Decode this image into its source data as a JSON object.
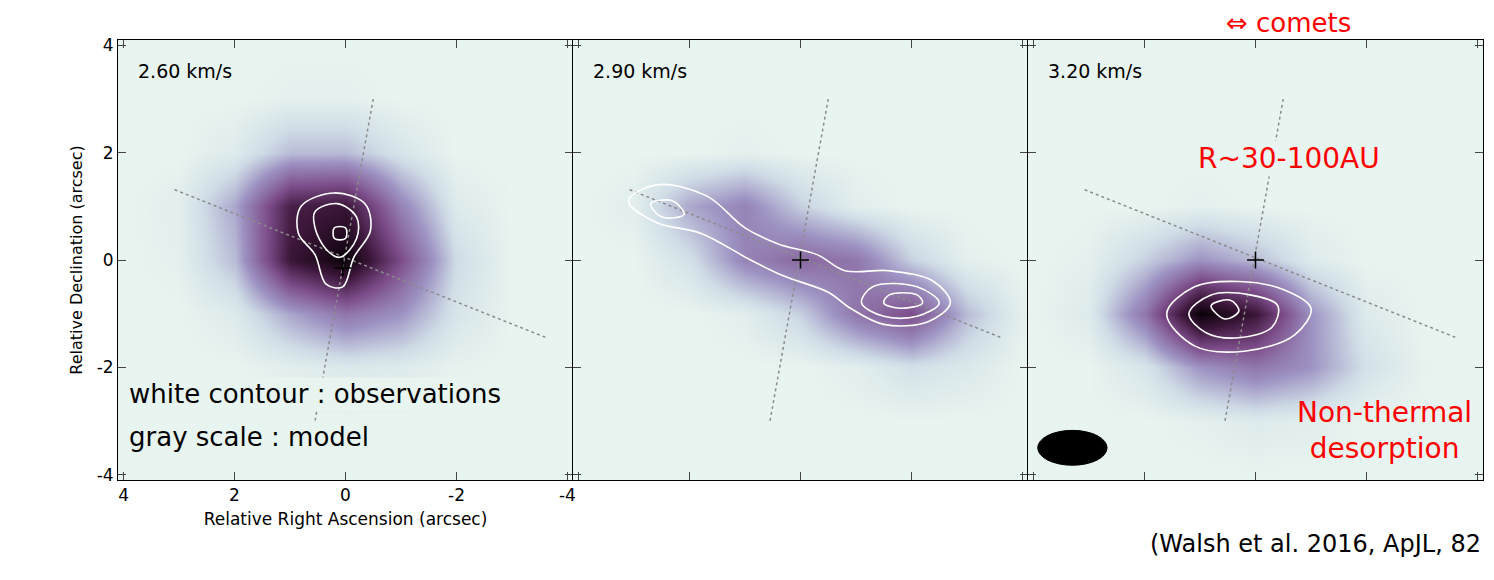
{
  "chart_data": [
    {
      "type": "heatmap",
      "title": "2.60 km/s",
      "xlabel": "Relative Right Ascension (arcsec)",
      "ylabel": "Relative Declination (arcsec)",
      "xlim": [
        4.1,
        -4.1
      ],
      "ylim": [
        -4.1,
        4.1
      ],
      "xticks": [
        4,
        2,
        0,
        -2,
        -4
      ],
      "yticks": [
        -4,
        -2,
        0,
        2,
        4
      ],
      "x": [
        4,
        3,
        2,
        1,
        0,
        -1,
        -2,
        -3,
        -4
      ],
      "y": [
        -4,
        -3,
        -2,
        -1,
        0,
        1,
        2,
        3,
        4
      ],
      "z": [
        [
          0,
          0,
          0,
          0,
          0,
          0,
          0,
          0,
          0
        ],
        [
          0,
          0,
          0,
          0,
          0,
          0,
          0,
          0,
          0
        ],
        [
          0,
          0,
          0,
          0.03,
          0.06,
          0.05,
          0.01,
          0,
          0
        ],
        [
          0,
          0,
          0.05,
          0.25,
          0.4,
          0.3,
          0.08,
          0,
          0
        ],
        [
          0,
          0.02,
          0.2,
          0.8,
          1.0,
          0.55,
          0.12,
          0,
          0
        ],
        [
          0,
          0.03,
          0.25,
          0.75,
          0.8,
          0.35,
          0.05,
          0,
          0
        ],
        [
          0,
          0,
          0.05,
          0.2,
          0.2,
          0.08,
          0,
          0,
          0
        ],
        [
          0,
          0,
          0,
          0.02,
          0.02,
          0,
          0,
          0,
          0
        ],
        [
          0,
          0,
          0,
          0,
          0,
          0,
          0,
          0,
          0
        ]
      ],
      "zlim": [
        0,
        1
      ],
      "contours": [
        {
          "color": "#ffffff",
          "x": [
            0.8,
            0.2,
            -0.35,
            -0.45,
            -0.15,
            0.05,
            0.35,
            0.55,
            0.85,
            0.8
          ],
          "y": [
            1.0,
            1.25,
            1.05,
            0.55,
            0.05,
            -0.5,
            -0.45,
            0.1,
            0.5,
            1.0
          ]
        },
        {
          "color": "#ffffff",
          "x": [
            0.55,
            0.15,
            -0.2,
            -0.2,
            0.1,
            0.35,
            0.55,
            0.55
          ],
          "y": [
            0.9,
            1.05,
            0.8,
            0.4,
            0.05,
            0.2,
            0.6,
            0.9
          ]
        },
        {
          "color": "#ffffff",
          "x": [
            0.2,
            0.0,
            0.0,
            0.2,
            0.2
          ],
          "y": [
            0.6,
            0.6,
            0.4,
            0.4,
            0.6
          ]
        }
      ],
      "guide_lines": [
        {
          "line_style": "dot",
          "x": [
            3.08,
            -3.6
          ],
          "y": [
            1.31,
            -1.44
          ]
        },
        {
          "line_style": "dot",
          "x": [
            -0.5,
            0.55
          ],
          "y": [
            3.0,
            -3.0
          ]
        }
      ],
      "center": [
        0.05,
        -0.15
      ],
      "annotations": [
        "white contour : observations",
        "gray scale : model"
      ]
    },
    {
      "type": "heatmap",
      "title": "2.90 km/s",
      "tick_labels": false,
      "xlim": [
        4.1,
        -4.1
      ],
      "ylim": [
        -4.1,
        4.1
      ],
      "xticks": [
        4,
        2,
        0,
        -2,
        -4
      ],
      "yticks": [
        -4,
        -2,
        0,
        2,
        4
      ],
      "x": [
        4,
        3,
        2,
        1,
        0,
        -1,
        -2,
        -3,
        -4
      ],
      "y": [
        -4,
        -3,
        -2,
        -1,
        0,
        1,
        2,
        3,
        4
      ],
      "z": [
        [
          0,
          0,
          0,
          0,
          0,
          0,
          0,
          0,
          0
        ],
        [
          0,
          0,
          0,
          0,
          0,
          0,
          0,
          0,
          0
        ],
        [
          0,
          0,
          0,
          0,
          0,
          0.03,
          0.1,
          0.06,
          0
        ],
        [
          0,
          0,
          0,
          0.03,
          0.15,
          0.4,
          0.55,
          0.2,
          0.02
        ],
        [
          0,
          0,
          0.1,
          0.35,
          0.45,
          0.4,
          0.15,
          0.02,
          0
        ],
        [
          0,
          0.03,
          0.25,
          0.35,
          0.15,
          0.03,
          0,
          0,
          0
        ],
        [
          0,
          0,
          0,
          0.02,
          0,
          0,
          0,
          0,
          0
        ],
        [
          0,
          0,
          0,
          0,
          0,
          0,
          0,
          0,
          0
        ],
        [
          0,
          0,
          0,
          0,
          0,
          0,
          0,
          0,
          0
        ]
      ],
      "zlim": [
        0,
        1
      ],
      "contours": [
        {
          "color": "#ffffff",
          "x": [
            3.1,
            2.6,
            1.7,
            1.0,
            0.4,
            -0.3,
            -0.8,
            -1.6,
            -2.4,
            -2.7,
            -2.3,
            -1.5,
            -0.9,
            -0.5,
            0.3,
            0.9,
            1.8,
            2.6,
            3.1
          ],
          "y": [
            1.1,
            1.4,
            1.2,
            0.6,
            0.3,
            0.1,
            -0.2,
            -0.2,
            -0.4,
            -0.8,
            -1.15,
            -1.2,
            -0.9,
            -0.6,
            -0.3,
            0.0,
            0.5,
            0.7,
            1.1
          ]
        },
        {
          "color": "#ffffff",
          "x": [
            -1.3,
            -2.1,
            -2.5,
            -2.1,
            -1.5,
            -1.1,
            -1.3
          ],
          "y": [
            -0.5,
            -0.5,
            -0.8,
            -1.05,
            -1.05,
            -0.8,
            -0.5
          ]
        },
        {
          "color": "#ffffff",
          "x": [
            -1.6,
            -2.1,
            -2.2,
            -1.8,
            -1.5,
            -1.6
          ],
          "y": [
            -0.65,
            -0.65,
            -0.8,
            -0.9,
            -0.8,
            -0.65
          ]
        },
        {
          "color": "#ffffff",
          "x": [
            2.7,
            2.3,
            2.1,
            2.5,
            2.7
          ],
          "y": [
            1.05,
            1.1,
            0.85,
            0.8,
            1.05
          ]
        }
      ],
      "guide_lines": [
        {
          "line_style": "dot",
          "x": [
            3.08,
            -3.6
          ],
          "y": [
            1.31,
            -1.44
          ]
        },
        {
          "line_style": "dot",
          "x": [
            -0.5,
            0.55
          ],
          "y": [
            3.0,
            -3.0
          ]
        }
      ],
      "center": [
        0,
        0
      ]
    },
    {
      "type": "heatmap",
      "title": "3.20 km/s",
      "tick_labels": false,
      "xlim": [
        4.1,
        -4.1
      ],
      "ylim": [
        -4.1,
        4.1
      ],
      "xticks": [
        4,
        2,
        0,
        -2,
        -4
      ],
      "yticks": [
        -4,
        -2,
        0,
        2,
        4
      ],
      "x": [
        4,
        3,
        2,
        1,
        0,
        -1,
        -2,
        -3,
        -4
      ],
      "y": [
        -4,
        -3,
        -2,
        -1,
        0,
        1,
        2,
        3,
        4
      ],
      "z": [
        [
          0,
          0,
          0,
          0,
          0,
          0,
          0,
          0,
          0
        ],
        [
          0,
          0,
          0,
          0.02,
          0.05,
          0.03,
          0,
          0,
          0
        ],
        [
          0,
          0,
          0.08,
          0.3,
          0.4,
          0.3,
          0.1,
          0.01,
          0
        ],
        [
          0,
          0.05,
          0.4,
          1.0,
          0.8,
          0.3,
          0.05,
          0,
          0
        ],
        [
          0,
          0.02,
          0.15,
          0.3,
          0.2,
          0.05,
          0,
          0,
          0
        ],
        [
          0,
          0,
          0,
          0.02,
          0,
          0,
          0,
          0,
          0
        ],
        [
          0,
          0,
          0,
          0,
          0,
          0,
          0,
          0,
          0
        ],
        [
          0,
          0,
          0,
          0,
          0,
          0,
          0,
          0,
          0
        ],
        [
          0,
          0,
          0,
          0,
          0,
          0,
          0,
          0,
          0
        ]
      ],
      "zlim": [
        0,
        1
      ],
      "contours": [
        {
          "color": "#ffffff",
          "x": [
            1.6,
            1.1,
            0.3,
            -0.5,
            -1.0,
            -0.7,
            0.2,
            1.1,
            1.6
          ],
          "y": [
            -1.0,
            -0.5,
            -0.4,
            -0.55,
            -0.9,
            -1.4,
            -1.7,
            -1.6,
            -1.0
          ]
        },
        {
          "color": "#ffffff",
          "x": [
            1.2,
            0.8,
            0.1,
            -0.4,
            -0.3,
            0.3,
            0.9,
            1.2
          ],
          "y": [
            -1.0,
            -0.65,
            -0.65,
            -0.85,
            -1.25,
            -1.45,
            -1.35,
            -1.0
          ]
        },
        {
          "color": "#ffffff",
          "x": [
            0.8,
            0.45,
            0.3,
            0.55,
            0.8
          ],
          "y": [
            -0.85,
            -0.75,
            -0.95,
            -1.1,
            -0.85
          ]
        }
      ],
      "guide_lines": [
        {
          "line_style": "dot",
          "x": [
            3.08,
            -3.6
          ],
          "y": [
            1.31,
            -1.44
          ]
        },
        {
          "line_style": "dot",
          "x": [
            -0.5,
            0.55
          ],
          "y": [
            3.0,
            -3.0
          ]
        }
      ],
      "center": [
        0,
        0
      ],
      "beam": {
        "x": 3.3,
        "y": -3.5,
        "major": 1.25,
        "minor": 0.65
      },
      "annotations": [
        "R~30-100AU",
        "Non-thermal desorption"
      ]
    }
  ],
  "annotations": [
    "⇔ comets",
    "(Walsh et al. 2016, ApJL, 82"
  ]
}
